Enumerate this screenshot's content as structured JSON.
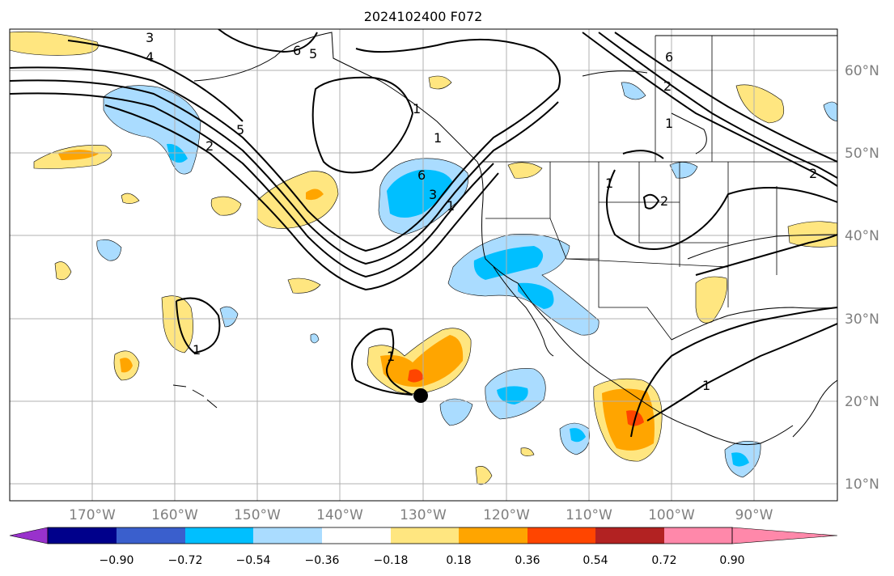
{
  "title": "2024102400 F072",
  "lon_labels": [
    "170°W",
    "160°W",
    "150°W",
    "140°W",
    "130°W",
    "120°W",
    "110°W",
    "100°W",
    "90°W"
  ],
  "lat_labels": [
    "60°N",
    "50°N",
    "40°N",
    "30°N",
    "20°N",
    "10°N"
  ],
  "colorbar": {
    "labels": [
      "−0.90",
      "−0.72",
      "−0.54",
      "−0.36",
      "−0.18",
      "0.18",
      "0.36",
      "0.54",
      "0.72",
      "0.90"
    ],
    "colors": [
      "#9932cc",
      "#00008b",
      "#3a5fcd",
      "#00bfff",
      "#aadcff",
      "#ffffff",
      "#ffe680",
      "#ffa500",
      "#ff4500",
      "#b22222",
      "#ff88aa"
    ]
  },
  "contour_labels": [
    "3",
    "4",
    "6",
    "5",
    "5",
    "2",
    "1",
    "6",
    "3",
    "1",
    "1",
    "2",
    "1",
    "6",
    "1",
    "2",
    "1",
    "1",
    "1",
    "2"
  ]
}
